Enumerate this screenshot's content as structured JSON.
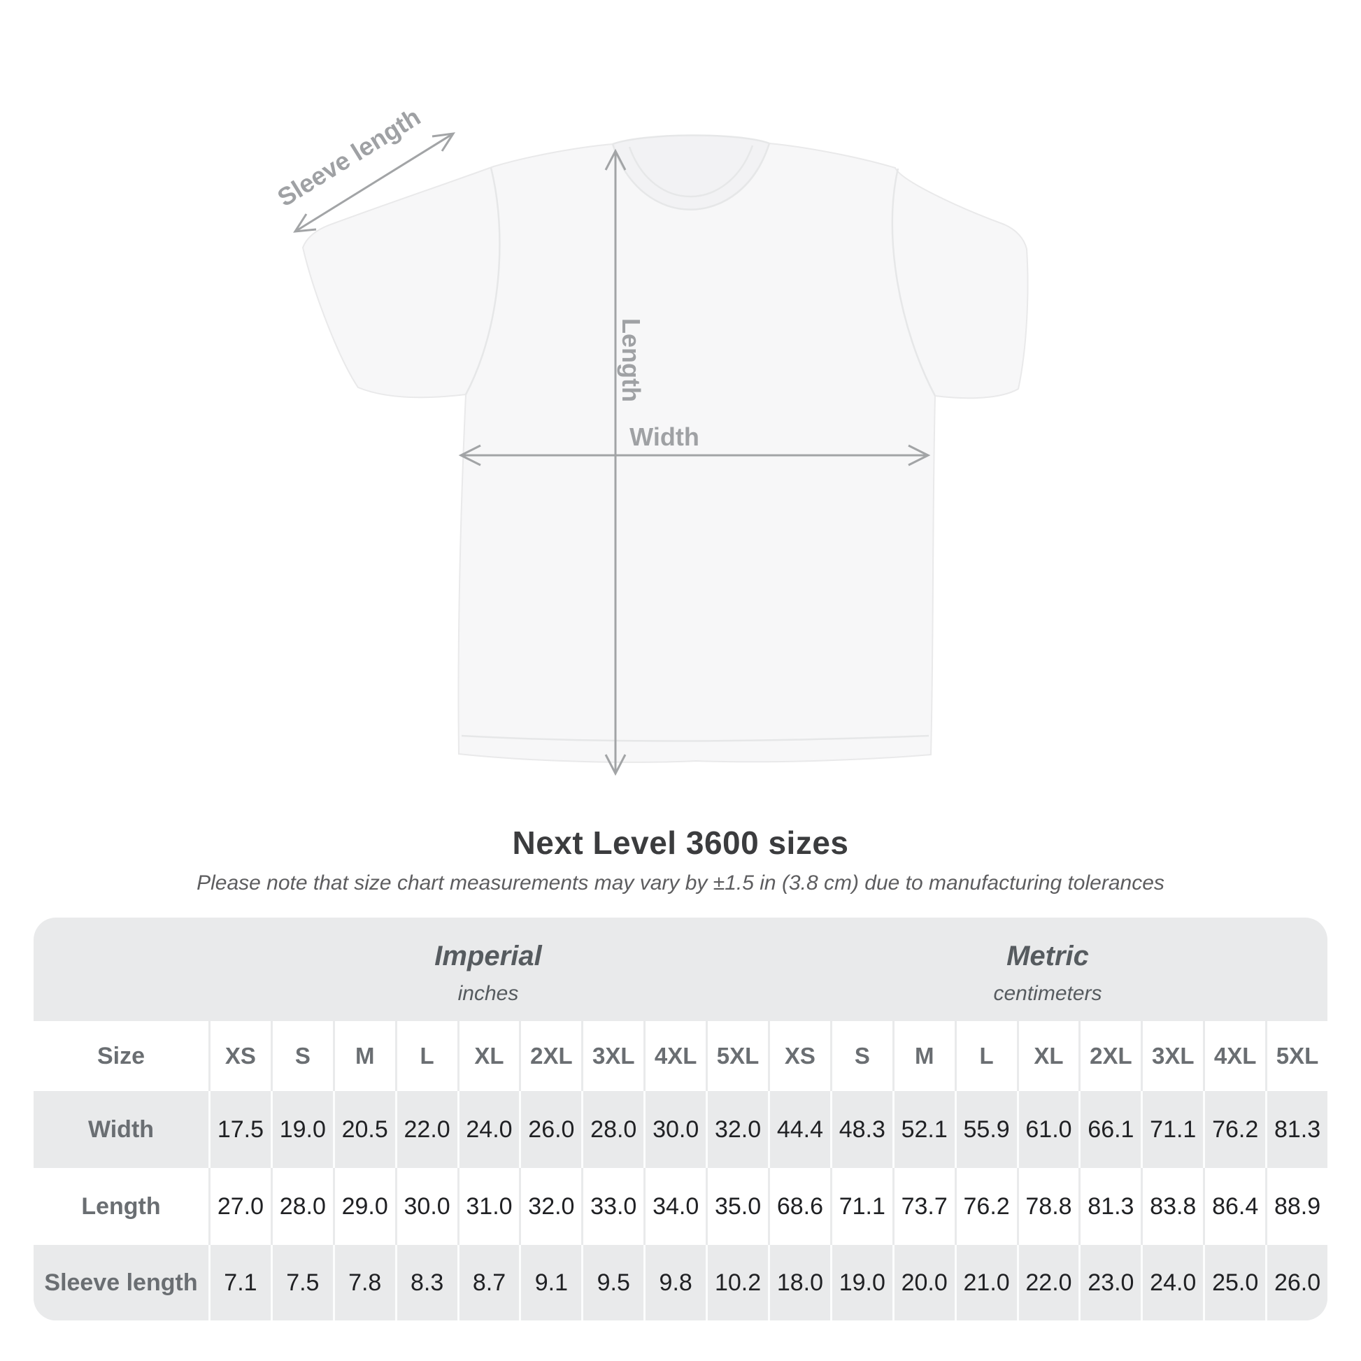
{
  "diagram": {
    "sleeve_label": "Sleeve length",
    "length_label": "Length",
    "width_label": "Width"
  },
  "title": "Next Level 3600 sizes",
  "subtitle": "Please note that size chart measurements may vary by ±1.5 in (3.8 cm) due to manufacturing tolerances",
  "table": {
    "imperial": {
      "title": "Imperial",
      "subtitle": "inches"
    },
    "metric": {
      "title": "Metric",
      "subtitle": "centimeters"
    },
    "header_label": "Size",
    "sizes": [
      "XS",
      "S",
      "M",
      "L",
      "XL",
      "2XL",
      "3XL",
      "4XL",
      "5XL"
    ],
    "rows": [
      {
        "label": "Width",
        "imperial": [
          "17.5",
          "19.0",
          "20.5",
          "22.0",
          "24.0",
          "26.0",
          "28.0",
          "30.0",
          "32.0"
        ],
        "metric": [
          "44.4",
          "48.3",
          "52.1",
          "55.9",
          "61.0",
          "66.1",
          "71.1",
          "76.2",
          "81.3"
        ]
      },
      {
        "label": "Length",
        "imperial": [
          "27.0",
          "28.0",
          "29.0",
          "30.0",
          "31.0",
          "32.0",
          "33.0",
          "34.0",
          "35.0"
        ],
        "metric": [
          "68.6",
          "71.1",
          "73.7",
          "76.2",
          "78.8",
          "81.3",
          "83.8",
          "86.4",
          "88.9"
        ]
      },
      {
        "label": "Sleeve length",
        "imperial": [
          "7.1",
          "7.5",
          "7.8",
          "8.3",
          "8.7",
          "9.1",
          "9.5",
          "9.8",
          "10.2"
        ],
        "metric": [
          "18.0",
          "19.0",
          "20.0",
          "21.0",
          "22.0",
          "23.0",
          "24.0",
          "25.0",
          "26.0"
        ]
      }
    ]
  },
  "colors": {
    "table_bg": "#e9eaeb",
    "row_white": "#ffffff",
    "label_gray": "#6a6e72",
    "value_dark": "#202124",
    "arrow_gray": "#a2a4a6",
    "title_dark": "#3b3c3e"
  }
}
